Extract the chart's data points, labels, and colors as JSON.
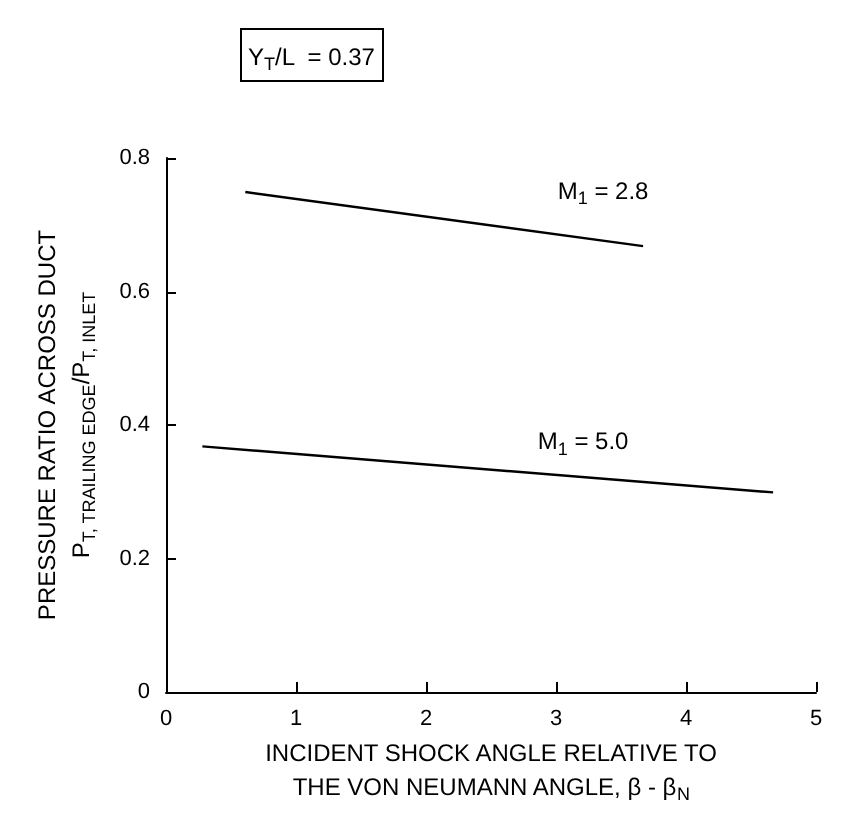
{
  "chart_data": {
    "type": "line",
    "title": "Y$_{T}$/L  = 0.37",
    "xlabel": "INCIDENT SHOCK ANGLE RELATIVE TO\nTHE VON NEUMANN ANGLE, β - β$_{N}$",
    "ylabel": "PRESSURE RATIO ACROSS DUCT\nP$_{T, TRAILING EDGE}$/P$_{T, INLET}$",
    "series": [
      {
        "name": "M$_{1}$ = 2.8",
        "color": "#000000",
        "x": [
          0.61,
          3.67
        ],
        "values": [
          0.749,
          0.668
        ]
      },
      {
        "name": "M$_{1}$ = 5.0",
        "color": "#000000",
        "x": [
          0.28,
          4.67
        ],
        "values": [
          0.368,
          0.299
        ]
      }
    ],
    "xlim": [
      0,
      5
    ],
    "xticks": [
      0,
      1,
      2,
      3,
      4,
      5
    ],
    "ylim": [
      0,
      0.8
    ],
    "yticks": [
      0,
      0.2,
      0.4,
      0.6,
      0.8
    ],
    "grid": false,
    "legend": false,
    "marker": "none",
    "line_style": "solid"
  }
}
